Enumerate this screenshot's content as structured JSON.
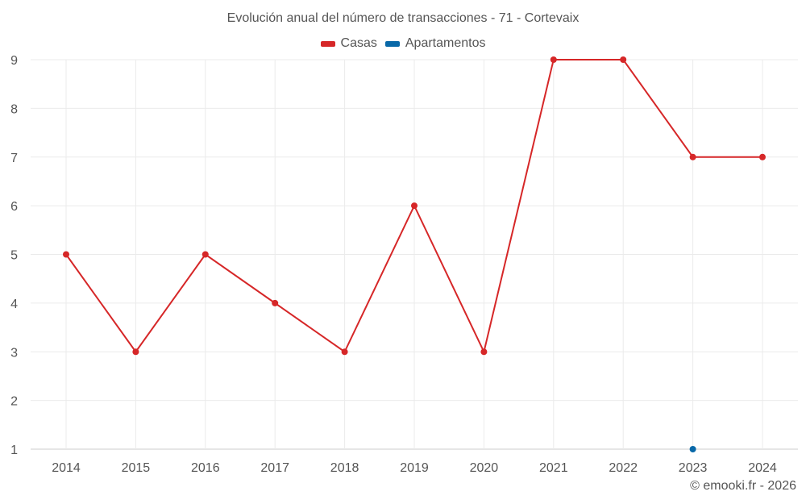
{
  "chart_data": {
    "type": "line",
    "title": "Evolución anual del número de transacciones - 71 - Cortevaix",
    "xlabel": "",
    "ylabel": "",
    "categories": [
      "2014",
      "2015",
      "2016",
      "2017",
      "2018",
      "2019",
      "2020",
      "2021",
      "2022",
      "2023",
      "2024"
    ],
    "series": [
      {
        "name": "Casas",
        "color": "#d62728",
        "values": [
          5,
          3,
          5,
          4,
          3,
          6,
          3,
          9,
          9,
          7,
          7
        ]
      },
      {
        "name": "Apartamentos",
        "color": "#0868a8",
        "values": [
          null,
          null,
          null,
          null,
          null,
          null,
          null,
          null,
          null,
          1,
          null
        ]
      }
    ],
    "ylim": [
      1,
      9
    ],
    "yticks": [
      1,
      2,
      3,
      4,
      5,
      6,
      7,
      8,
      9
    ],
    "grid": true,
    "legend_position": "top"
  },
  "legend": {
    "items": [
      {
        "label": "Casas",
        "color": "#d62728"
      },
      {
        "label": "Apartamentos",
        "color": "#0868a8"
      }
    ]
  },
  "credit": "© emooki.fr - 2026"
}
